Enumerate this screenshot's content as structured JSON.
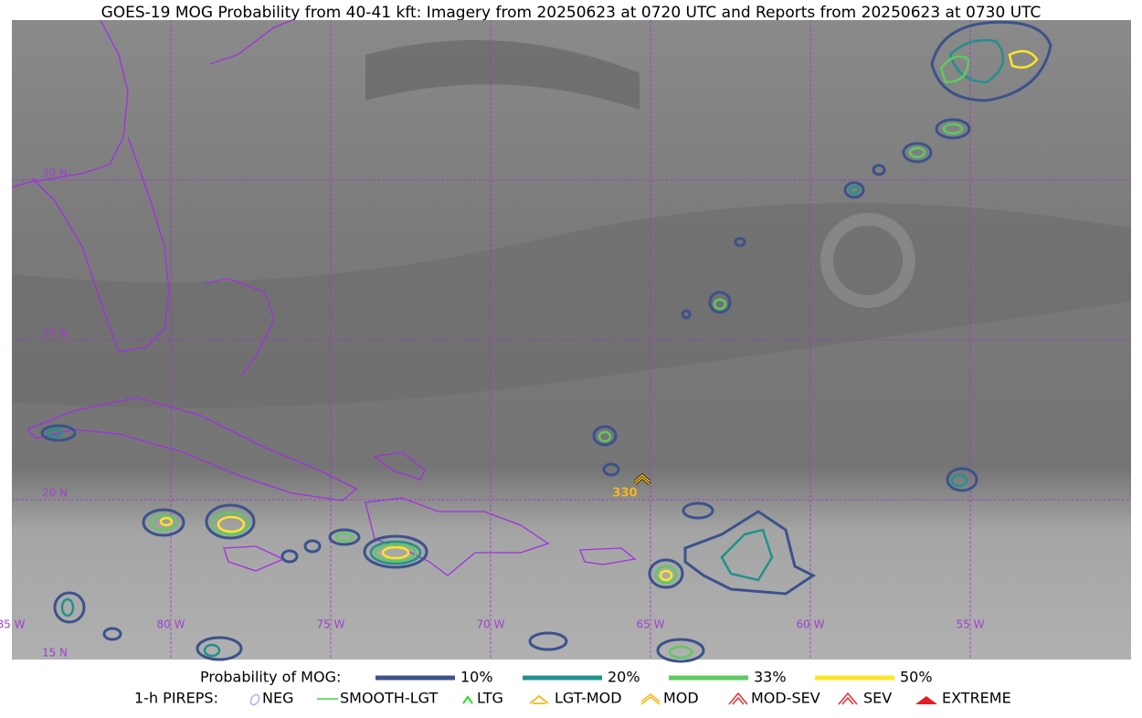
{
  "title": "GOES-19 MOG Probability from 40-41 kft: Imagery from 20250623 at 0720 UTC and Reports from 20250623 at 0730 UTC",
  "map": {
    "lat_labels": [
      "30 N",
      "25 N",
      "20 N",
      "15 N"
    ],
    "lon_labels": [
      "85 W",
      "80 W",
      "75 W",
      "70 W",
      "65 W",
      "60 W",
      "55 W"
    ],
    "report_label": "330"
  },
  "legend": {
    "mog_title": "Probability of MOG:",
    "mog_levels": [
      "10%",
      "20%",
      "33%",
      "50%"
    ],
    "pirep_title": "1-h PIREPS:",
    "pireps": [
      "NEG",
      "SMOOTH-LGT",
      "LTG",
      "LGT-MOD",
      "MOD",
      "MOD-SEV",
      "SEV",
      "EXTREME"
    ]
  }
}
